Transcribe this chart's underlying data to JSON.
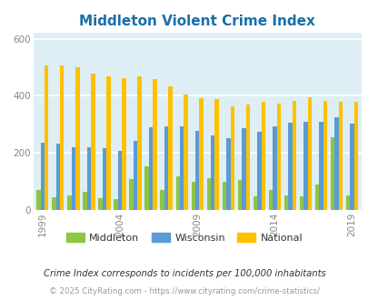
{
  "title": "Middleton Violent Crime Index",
  "title_color": "#1a6fa8",
  "subtitle": "Crime Index corresponds to incidents per 100,000 inhabitants",
  "footer": "© 2025 CityRating.com - https://www.cityrating.com/crime-statistics/",
  "years": [
    1999,
    2000,
    2001,
    2002,
    2003,
    2004,
    2005,
    2006,
    2007,
    2008,
    2009,
    2010,
    2011,
    2012,
    2013,
    2014,
    2015,
    2016,
    2017,
    2018,
    2019
  ],
  "middleton": [
    70,
    45,
    50,
    65,
    40,
    37,
    107,
    152,
    70,
    117,
    100,
    110,
    100,
    105,
    47,
    70,
    50,
    47,
    90,
    255,
    50
  ],
  "wisconsin": [
    237,
    232,
    220,
    220,
    218,
    207,
    243,
    289,
    292,
    293,
    278,
    261,
    251,
    286,
    275,
    293,
    307,
    310,
    308,
    325,
    302
  ],
  "national": [
    507,
    506,
    499,
    479,
    468,
    463,
    469,
    460,
    432,
    405,
    392,
    387,
    362,
    369,
    380,
    372,
    383,
    395,
    383,
    379,
    379
  ],
  "bar_width": 0.26,
  "ylim": [
    0,
    620
  ],
  "yticks": [
    0,
    200,
    400,
    600
  ],
  "color_middleton": "#8dc641",
  "color_wisconsin": "#5b9bd5",
  "color_national": "#ffc000",
  "bg_color": "#ddeef5",
  "grid_color": "#ffffff",
  "tick_label_color": "#888888",
  "legend_labels": [
    "Middleton",
    "Wisconsin",
    "National"
  ]
}
